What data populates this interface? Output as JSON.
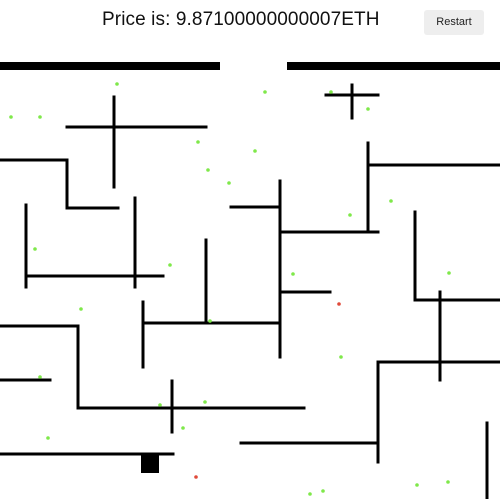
{
  "header": {
    "price_label": "Price is: ",
    "price_value": "9.87100000000007",
    "price_unit": "ETH",
    "restart_label": "Restart"
  },
  "colors": {
    "wall": "#000000",
    "coin": "#7fe84a",
    "enemy": "#e04a3a",
    "player": "#000000"
  }
}
